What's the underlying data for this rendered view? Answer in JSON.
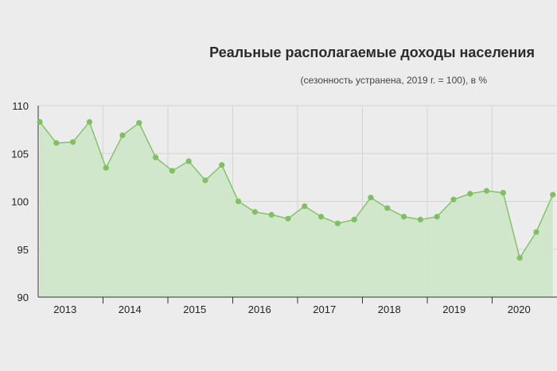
{
  "chart_data": {
    "type": "area",
    "title": "Реальные располагаемые доходы населения",
    "subtitle": "(сезонность устранена, 2019 г. = 100), в %",
    "xlabel": "",
    "ylabel": "",
    "ylim": [
      90,
      110
    ],
    "yticks": [
      90,
      95,
      100,
      105,
      110
    ],
    "x_categories": [
      "2013",
      "2014",
      "2015",
      "2016",
      "2017",
      "2018",
      "2019",
      "2020"
    ],
    "points_per_year": 4,
    "grid": true,
    "colors": {
      "line": "#7cc35f",
      "fill": "#cfe7c9",
      "marker": "#7cc35f",
      "background": "#ececec"
    },
    "series": [
      {
        "quarters": [
          "2013 Q1",
          "2013 Q2",
          "2013 Q3",
          "2013 Q4",
          "2014 Q1",
          "2014 Q2",
          "2014 Q3",
          "2014 Q4",
          "2015 Q1",
          "2015 Q2",
          "2015 Q3",
          "2015 Q4",
          "2016 Q1",
          "2016 Q2",
          "2016 Q3",
          "2016 Q4",
          "2017 Q1",
          "2017 Q2",
          "2017 Q3",
          "2017 Q4",
          "2018 Q1",
          "2018 Q2",
          "2018 Q3",
          "2018 Q4",
          "2019 Q1",
          "2019 Q2",
          "2019 Q3",
          "2019 Q4",
          "2020 Q1",
          "2020 Q2",
          "2020 Q3",
          "2020 Q4"
        ],
        "values": [
          108.3,
          106.1,
          106.2,
          108.3,
          103.5,
          106.9,
          108.2,
          104.6,
          103.2,
          104.2,
          102.2,
          103.8,
          100.0,
          98.9,
          98.6,
          98.2,
          99.5,
          98.4,
          97.7,
          98.1,
          100.4,
          99.3,
          98.4,
          98.1,
          98.4,
          100.2,
          100.8,
          101.1,
          100.9,
          94.1,
          96.8,
          100.7
        ]
      }
    ]
  }
}
